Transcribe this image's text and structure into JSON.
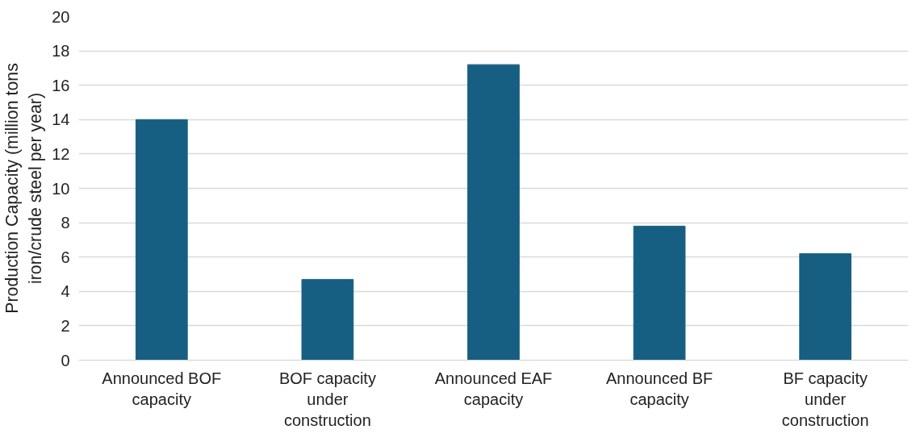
{
  "chart_data": {
    "type": "bar",
    "ylabel": "Production Capacity (million tons iron/crude steel per year)",
    "categories": [
      "Announced BOF capacity",
      "BOF capacity under construction",
      "Announced EAF capacity",
      "Announced BF capacity",
      "BF capacity under construction"
    ],
    "values": [
      14.0,
      4.7,
      17.2,
      7.8,
      6.2
    ],
    "color": "#175f82",
    "ylim": [
      0,
      20
    ],
    "yticks": [
      0,
      2,
      4,
      6,
      8,
      10,
      12,
      14,
      16,
      18,
      20
    ],
    "grid": "y"
  }
}
